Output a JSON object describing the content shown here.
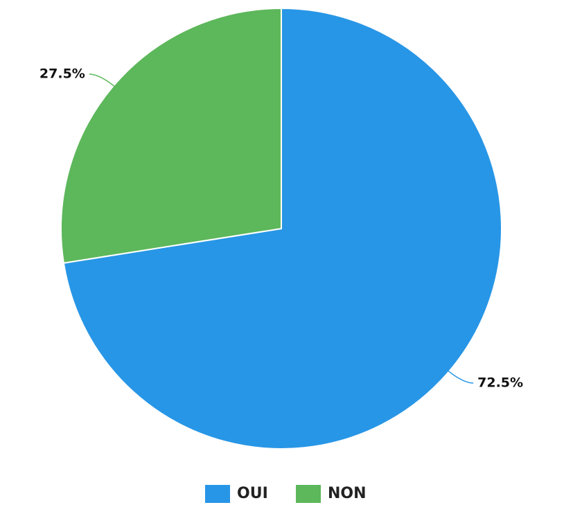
{
  "chart_data": {
    "type": "pie",
    "title": "",
    "slices": [
      {
        "label": "OUI",
        "value": 72.5,
        "value_label": "72.5%",
        "color": "#2896E6"
      },
      {
        "label": "NON",
        "value": 27.5,
        "value_label": "27.5%",
        "color": "#5DB75B"
      }
    ],
    "start_angle": "12 o'clock, clockwise",
    "legend_position": "bottom-center"
  }
}
